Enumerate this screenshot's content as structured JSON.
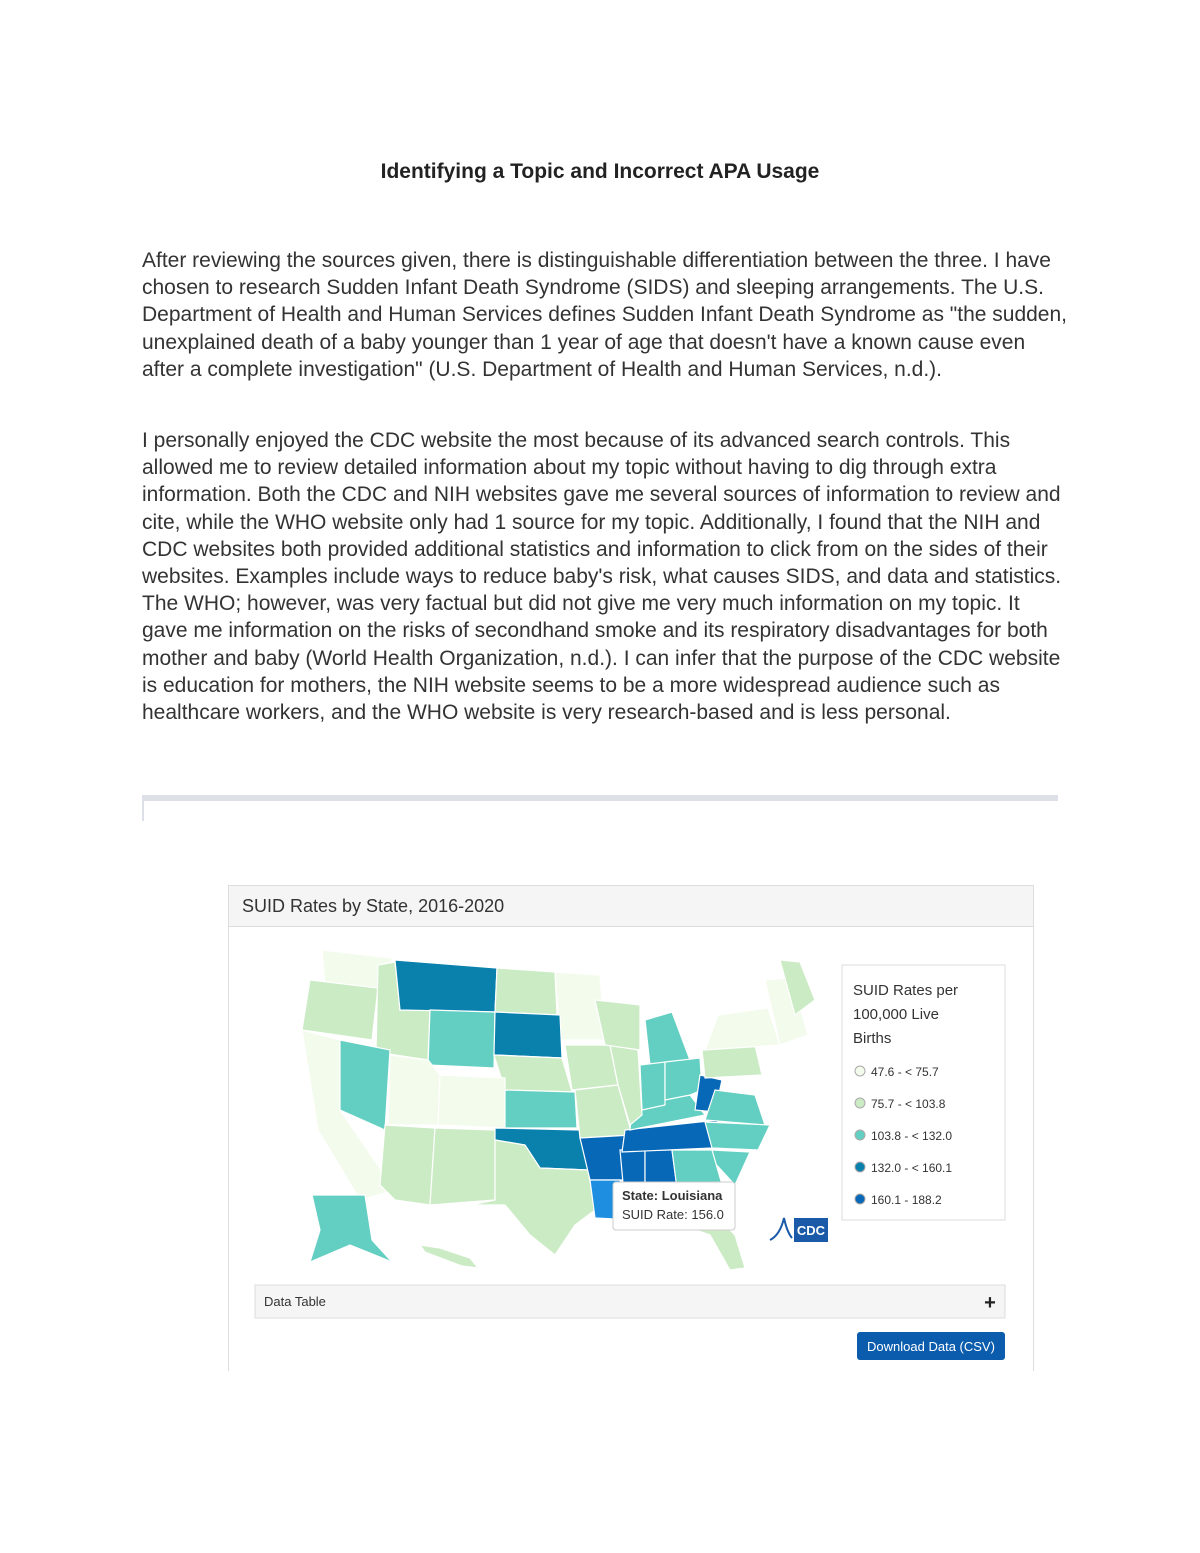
{
  "header": {
    "title": "Identifying a Topic and Incorrect APA Usage"
  },
  "paragraphs": [
    "After reviewing the sources given, there is distinguishable differentiation between the three. I have chosen to research Sudden Infant Death Syndrome (SIDS) and sleeping arrangements. The U.S. Department of Health and Human Services defines Sudden Infant Death Syndrome as \"the sudden, unexplained death of a baby younger than 1 year of age that doesn't have a known cause even after a complete investigation\" (U.S. Department of Health and Human Services, n.d.).",
    "I personally enjoyed the CDC website the most because of its advanced search controls. This allowed me to review detailed information about my topic without having to dig through extra information. Both the CDC and NIH websites gave me several sources of information to review and cite, while the WHO website only had 1 source for my topic. Additionally, I found that the NIH and CDC websites both provided additional statistics and information to click from on the sides of their websites. Examples include ways to reduce baby's risk, what causes SIDS, and data and statistics. The WHO; however, was very factual but did not give me very much information on my topic. It gave me information on the risks of secondhand smoke and its respiratory disadvantages for both mother and baby (World Health Organization, n.d.). I can infer that the purpose of the CDC website is education for mothers, the NIH website seems to be a more widespread audience such as healthcare workers, and the WHO website is very research-based and is less personal."
  ],
  "figure": {
    "title": "SUID Rates by State, 2016-2020",
    "legend": {
      "title": "SUID Rates per 100,000 Live Births",
      "items": [
        "47.6 - < 75.7",
        "75.7 - < 103.8",
        "103.8 - < 132.0",
        "132.0 - < 160.1",
        "160.1 - 188.2"
      ]
    },
    "tooltip": {
      "state": "State: Louisiana",
      "rate": "SUID Rate: 156.0"
    },
    "logo": "CDC",
    "data_table": {
      "label": "Data Table",
      "toggle": "+"
    },
    "button": "Download Data (CSV)"
  }
}
